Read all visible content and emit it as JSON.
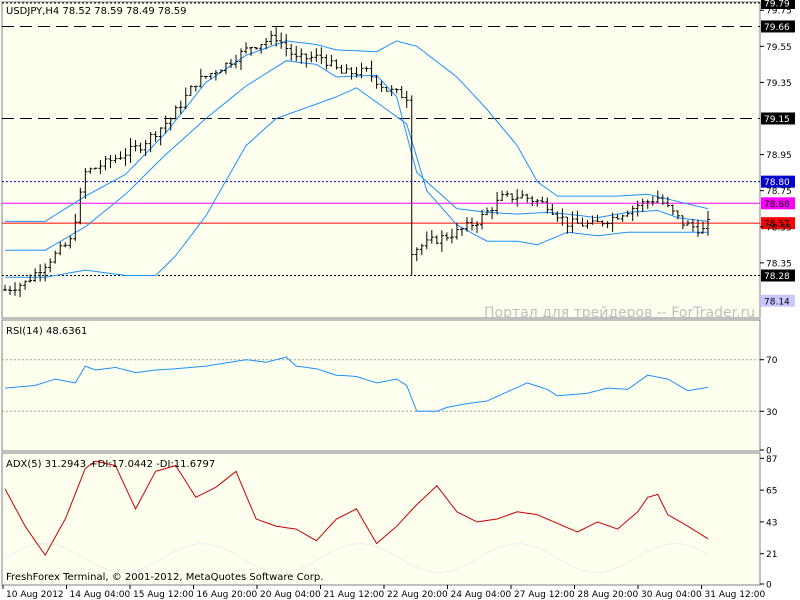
{
  "window": {
    "header": "USDJPY,H4  78.52 78.59 78.49 78.59",
    "watermark": "Портал для трейдеров -- ForTrader.ru",
    "footer": "FreshForex Terminal, © 2001-2012, MetaQuotes Software Corp."
  },
  "colors": {
    "background": "#ffffff",
    "panel_bg": "#fffff0",
    "grid": "#808080",
    "price_bars": "#000000",
    "bollinger": "#1e90ff",
    "rsi": "#1e90ff",
    "adx": "#c80000",
    "di_faint": "#f0f0f0",
    "hline_horizontal": "#000000",
    "hline_magenta": "#ff00ff",
    "hline_red": "#ff0000"
  },
  "chart_data": [
    {
      "type": "ohlc",
      "title": "USDJPY,H4  78.52 78.59 78.49 78.59",
      "ylim": [
        78.05,
        79.79
      ],
      "y_ticks": [
        "79.79",
        "79.75",
        "79.66",
        "79.55",
        "79.35",
        "79.15",
        "78.95",
        "78.80",
        "78.75",
        "78.68",
        "78.57",
        "78.55",
        "78.35",
        "78.28",
        "78.14"
      ],
      "x_labels": [
        "10 Aug 2012",
        "14 Aug 04:00",
        "15 Aug 12:00",
        "16 Aug 20:00",
        "20 Aug 04:00",
        "21 Aug 12:00",
        "22 Aug 20:00",
        "24 Aug 04:00",
        "27 Aug 12:00",
        "28 Aug 20:00",
        "30 Aug 04:00",
        "31 Aug 12:00"
      ],
      "horizontal_lines": [
        {
          "value": 79.79,
          "label": "79.79",
          "style": "dotted",
          "color": "#000000"
        },
        {
          "value": 79.66,
          "label": "79.66",
          "style": "dashed",
          "color": "#000000"
        },
        {
          "value": 79.15,
          "label": "79.15",
          "style": "dashed",
          "color": "#000000"
        },
        {
          "value": 78.8,
          "label": "78.80",
          "style": "dotted",
          "color": "#0000c8"
        },
        {
          "value": 78.68,
          "label": "78.68",
          "style": "solid",
          "color": "#ff00ff"
        },
        {
          "value": 78.57,
          "label": "78.57",
          "style": "solid",
          "color": "#ff0000"
        },
        {
          "value": 78.28,
          "label": "78.28",
          "style": "dotted",
          "color": "#000000"
        },
        {
          "value": 78.14,
          "label": "78.14",
          "style": "none",
          "color": "#c8c8ff"
        }
      ],
      "last_price": 78.59,
      "anchors": [
        [
          0,
          78.2
        ],
        [
          4,
          78.24
        ],
        [
          9,
          78.37
        ],
        [
          13,
          78.47
        ],
        [
          16,
          78.85
        ],
        [
          22,
          78.93
        ],
        [
          27,
          79.0
        ],
        [
          33,
          79.15
        ],
        [
          38,
          79.35
        ],
        [
          44,
          79.45
        ],
        [
          49,
          79.55
        ],
        [
          54,
          79.6
        ],
        [
          58,
          79.48
        ],
        [
          63,
          79.49
        ],
        [
          67,
          79.4
        ],
        [
          72,
          79.41
        ],
        [
          76,
          79.31
        ],
        [
          80,
          79.27
        ],
        [
          81,
          78.42
        ],
        [
          85,
          78.47
        ],
        [
          90,
          78.52
        ],
        [
          94,
          78.58
        ],
        [
          99,
          78.71
        ],
        [
          103,
          78.72
        ],
        [
          108,
          78.67
        ],
        [
          112,
          78.57
        ],
        [
          117,
          78.56
        ],
        [
          121,
          78.6
        ],
        [
          126,
          78.67
        ],
        [
          130,
          78.71
        ],
        [
          135,
          78.57
        ],
        [
          139,
          78.53
        ],
        [
          140,
          78.59
        ]
      ],
      "bollinger_upper": [
        [
          0,
          78.58
        ],
        [
          8,
          78.58
        ],
        [
          16,
          78.72
        ],
        [
          24,
          78.84
        ],
        [
          32,
          79.07
        ],
        [
          40,
          79.35
        ],
        [
          48,
          79.5
        ],
        [
          56,
          79.58
        ],
        [
          62,
          79.56
        ],
        [
          66,
          79.53
        ],
        [
          74,
          79.52
        ],
        [
          78,
          79.58
        ],
        [
          82,
          79.55
        ],
        [
          90,
          79.38
        ],
        [
          96,
          79.2
        ],
        [
          102,
          79.0
        ],
        [
          106,
          78.8
        ],
        [
          110,
          78.72
        ],
        [
          116,
          78.72
        ],
        [
          122,
          78.72
        ],
        [
          128,
          78.73
        ],
        [
          134,
          78.69
        ],
        [
          140,
          78.65
        ]
      ],
      "bollinger_middle": [
        [
          0,
          78.42
        ],
        [
          8,
          78.42
        ],
        [
          16,
          78.55
        ],
        [
          24,
          78.73
        ],
        [
          32,
          78.95
        ],
        [
          40,
          79.15
        ],
        [
          48,
          79.33
        ],
        [
          56,
          79.47
        ],
        [
          62,
          79.45
        ],
        [
          66,
          79.38
        ],
        [
          74,
          79.39
        ],
        [
          78,
          79.27
        ],
        [
          82,
          78.85
        ],
        [
          90,
          78.65
        ],
        [
          96,
          78.63
        ],
        [
          102,
          78.62
        ],
        [
          108,
          78.63
        ],
        [
          112,
          78.62
        ],
        [
          118,
          78.6
        ],
        [
          124,
          78.63
        ],
        [
          130,
          78.64
        ],
        [
          134,
          78.6
        ],
        [
          140,
          78.58
        ]
      ],
      "bollinger_lower": [
        [
          0,
          78.27
        ],
        [
          8,
          78.27
        ],
        [
          16,
          78.31
        ],
        [
          24,
          78.28
        ],
        [
          30,
          78.28
        ],
        [
          34,
          78.39
        ],
        [
          40,
          78.61
        ],
        [
          48,
          79.0
        ],
        [
          54,
          79.15
        ],
        [
          60,
          79.21
        ],
        [
          66,
          79.27
        ],
        [
          70,
          79.32
        ],
        [
          76,
          79.2
        ],
        [
          80,
          79.12
        ],
        [
          84,
          78.75
        ],
        [
          90,
          78.56
        ],
        [
          96,
          78.47
        ],
        [
          102,
          78.47
        ],
        [
          106,
          78.45
        ],
        [
          112,
          78.52
        ],
        [
          118,
          78.5
        ],
        [
          124,
          78.52
        ],
        [
          130,
          78.52
        ],
        [
          136,
          78.52
        ],
        [
          140,
          78.52
        ]
      ]
    },
    {
      "type": "line",
      "title": "RSI(14) 48.6361",
      "series": [
        {
          "name": "RSI(14)",
          "values": []
        }
      ],
      "ylim": [
        0,
        100
      ],
      "y_ticks": [
        "70",
        "30",
        "0"
      ],
      "levels": [
        70,
        30
      ],
      "anchors": [
        [
          0,
          48
        ],
        [
          6,
          50
        ],
        [
          10,
          55
        ],
        [
          14,
          52
        ],
        [
          16,
          65
        ],
        [
          18,
          62
        ],
        [
          22,
          64
        ],
        [
          26,
          60
        ],
        [
          30,
          62
        ],
        [
          34,
          63
        ],
        [
          40,
          65
        ],
        [
          48,
          70
        ],
        [
          52,
          68
        ],
        [
          56,
          72
        ],
        [
          58,
          65
        ],
        [
          62,
          63
        ],
        [
          66,
          58
        ],
        [
          70,
          57
        ],
        [
          74,
          52
        ],
        [
          78,
          55
        ],
        [
          80,
          50
        ],
        [
          82,
          30
        ],
        [
          86,
          30
        ],
        [
          88,
          33
        ],
        [
          92,
          36
        ],
        [
          96,
          38
        ],
        [
          100,
          45
        ],
        [
          104,
          52
        ],
        [
          108,
          47
        ],
        [
          110,
          42
        ],
        [
          116,
          44
        ],
        [
          120,
          48
        ],
        [
          124,
          47
        ],
        [
          128,
          58
        ],
        [
          132,
          55
        ],
        [
          136,
          46
        ],
        [
          140,
          48.6361
        ]
      ]
    },
    {
      "type": "line",
      "title": "ADX(5) 31.2943 +DI:17.0442 -DI:11.6797",
      "series": [
        {
          "name": "ADX(5)",
          "values": []
        }
      ],
      "ylim": [
        0,
        90
      ],
      "y_ticks": [
        "87",
        "65",
        "43",
        "21",
        "0"
      ],
      "anchors": [
        [
          0,
          66
        ],
        [
          4,
          40
        ],
        [
          8,
          20
        ],
        [
          12,
          45
        ],
        [
          16,
          80
        ],
        [
          18,
          85
        ],
        [
          22,
          82
        ],
        [
          26,
          52
        ],
        [
          30,
          78
        ],
        [
          34,
          82
        ],
        [
          38,
          60
        ],
        [
          42,
          67
        ],
        [
          46,
          78
        ],
        [
          50,
          45
        ],
        [
          54,
          40
        ],
        [
          58,
          38
        ],
        [
          62,
          30
        ],
        [
          66,
          45
        ],
        [
          70,
          52
        ],
        [
          74,
          28
        ],
        [
          78,
          40
        ],
        [
          82,
          55
        ],
        [
          86,
          68
        ],
        [
          90,
          50
        ],
        [
          94,
          43
        ],
        [
          98,
          45
        ],
        [
          102,
          50
        ],
        [
          106,
          48
        ],
        [
          110,
          42
        ],
        [
          114,
          36
        ],
        [
          118,
          43
        ],
        [
          122,
          38
        ],
        [
          126,
          50
        ],
        [
          128,
          60
        ],
        [
          130,
          62
        ],
        [
          132,
          48
        ],
        [
          136,
          40
        ],
        [
          140,
          31.2943
        ]
      ]
    }
  ]
}
